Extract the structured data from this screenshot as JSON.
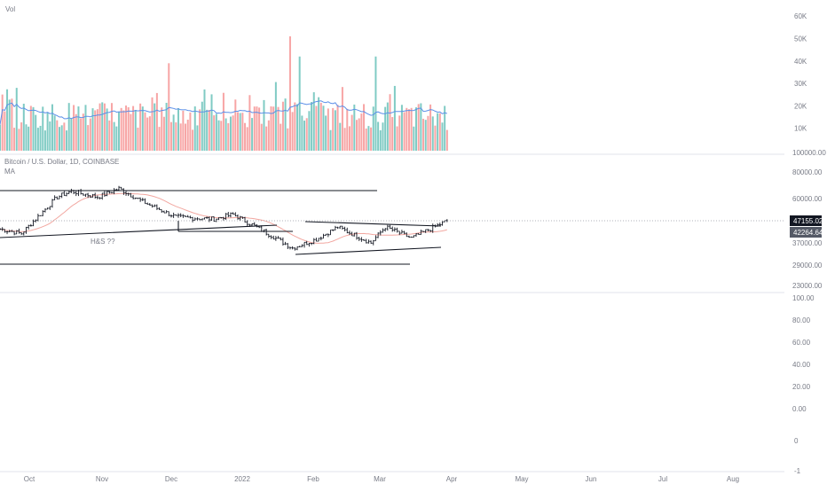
{
  "header": {
    "vol_label": "Vol",
    "symbol_label": "Bitcoin / U.S. Dollar, 1D, COINBASE",
    "ma_label": "MA"
  },
  "annotation": {
    "hs_label": "H&S ??"
  },
  "colors": {
    "vol_up": "#80cbc4",
    "vol_down": "#f7a5a5",
    "vol_ma": "#5b8fe8",
    "price_ma": "#f2a7a0",
    "candle": "#131722",
    "price_tag_current": "#131722",
    "price_tag_ma": "#555a66",
    "dotted_line": "#9598a1"
  },
  "price_tags": {
    "current": "47155.02",
    "ma": "42264.64"
  },
  "chart_data": [
    {
      "type": "bar",
      "name": "volume",
      "y_ticks": [
        "60K",
        "50K",
        "40K",
        "30K",
        "20K",
        "10K"
      ],
      "ylim": [
        0,
        65000
      ],
      "ma_visible": true,
      "spikes": [
        {
          "month": "Dec",
          "value": 39000
        },
        {
          "month": "Jan",
          "value": 51000
        },
        {
          "month": "Jan",
          "value": 42000
        },
        {
          "month": "Feb",
          "value": 42000
        }
      ]
    },
    {
      "type": "line",
      "name": "price",
      "scale": "log",
      "y_ticks": [
        "100000.00",
        "80000.00",
        "60000.00",
        "47155.02",
        "42264.64",
        "37000.00",
        "29000.00",
        "23000.00"
      ],
      "x_ticks": [
        "Oct",
        "Nov",
        "Dec",
        "2022",
        "Feb",
        "Mar",
        "Apr",
        "May",
        "Jun",
        "Jul",
        "Aug"
      ],
      "last_close": 47155.02,
      "ma_last": 42264.64,
      "ohlc_style": "bars",
      "key_points": [
        {
          "date": "Sep 20",
          "close": 43000
        },
        {
          "date": "Sep 29",
          "close": 41000
        },
        {
          "date": "Oct 15",
          "close": 61000
        },
        {
          "date": "Oct 21",
          "close": 65000
        },
        {
          "date": "Nov 1",
          "close": 61000
        },
        {
          "date": "Nov 10",
          "close": 67000
        },
        {
          "date": "Nov 20",
          "close": 58000
        },
        {
          "date": "Dec 4",
          "close": 49000
        },
        {
          "date": "Dec 20",
          "close": 48000
        },
        {
          "date": "Dec 28",
          "close": 50500
        },
        {
          "date": "Jan 10",
          "close": 42000
        },
        {
          "date": "Jan 22",
          "close": 35000
        },
        {
          "date": "Feb 1",
          "close": 38500
        },
        {
          "date": "Feb 10",
          "close": 44000
        },
        {
          "date": "Feb 24",
          "close": 37000
        },
        {
          "date": "Mar 2",
          "close": 44000
        },
        {
          "date": "Mar 13",
          "close": 39000
        },
        {
          "date": "Mar 28",
          "close": 47155.02
        }
      ]
    },
    {
      "type": "line",
      "name": "oscillator",
      "y_ticks": [
        "100.00",
        "80.00",
        "60.00",
        "40.00",
        "20.00",
        "0.00",
        "0",
        "-1"
      ],
      "ylim": [
        -1,
        100
      ]
    }
  ]
}
